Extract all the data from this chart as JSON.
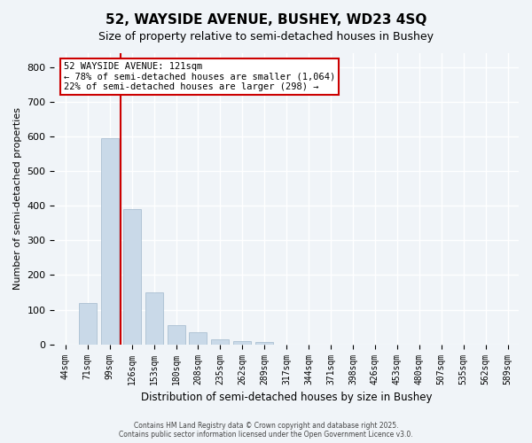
{
  "title_line1": "52, WAYSIDE AVENUE, BUSHEY, WD23 4SQ",
  "title_line2": "Size of property relative to semi-detached houses in Bushey",
  "xlabel": "Distribution of semi-detached houses by size in Bushey",
  "ylabel": "Number of semi-detached properties",
  "categories": [
    "44sqm",
    "71sqm",
    "99sqm",
    "126sqm",
    "153sqm",
    "180sqm",
    "208sqm",
    "235sqm",
    "262sqm",
    "289sqm",
    "317sqm",
    "344sqm",
    "371sqm",
    "398sqm",
    "426sqm",
    "453sqm",
    "480sqm",
    "507sqm",
    "535sqm",
    "562sqm",
    "589sqm"
  ],
  "values": [
    0,
    120,
    595,
    390,
    150,
    55,
    35,
    15,
    10,
    8,
    0,
    0,
    0,
    0,
    0,
    0,
    0,
    0,
    0,
    0,
    0
  ],
  "bar_color": "#c9d9e8",
  "bar_edge_color": "#a0b8cc",
  "vline_x": 2.5,
  "property_label": "52 WAYSIDE AVENUE: 121sqm",
  "annotation_line1": "← 78% of semi-detached houses are smaller (1,064)",
  "annotation_line2": "22% of semi-detached houses are larger (298) →",
  "vline_color": "#cc0000",
  "annotation_box_edge_color": "#cc0000",
  "ylim": [
    0,
    840
  ],
  "yticks": [
    0,
    100,
    200,
    300,
    400,
    500,
    600,
    700,
    800
  ],
  "bg_color": "#f0f4f8",
  "grid_color": "#ffffff",
  "footer_line1": "Contains HM Land Registry data © Crown copyright and database right 2025.",
  "footer_line2": "Contains public sector information licensed under the Open Government Licence v3.0."
}
